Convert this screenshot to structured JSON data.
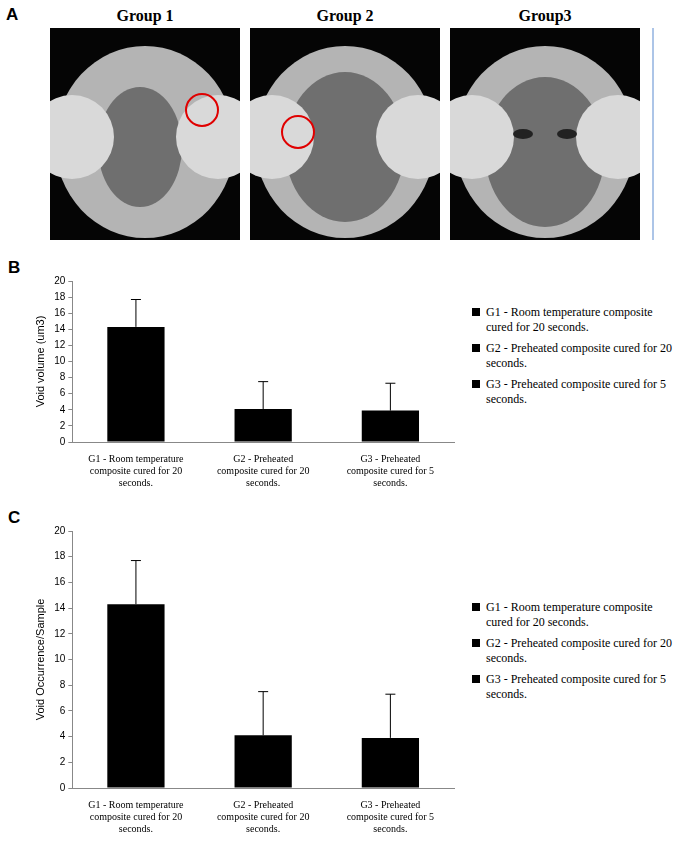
{
  "figure": {
    "panel_a": {
      "letter": "A",
      "titles": [
        "Group 1",
        "Group 2",
        "Group3"
      ]
    }
  },
  "chart_data": [
    {
      "panel_label": "B",
      "type": "bar",
      "y_label": "Void volume (um3)",
      "categories": [
        "G1 - Room temperature composite cured for 20 seconds.",
        "G2 - Preheated composite cured for 20 seconds.",
        "G3 - Preheated composite cured for 5 seconds."
      ],
      "values": [
        14.3,
        4.1,
        3.9
      ],
      "errors": [
        3.4,
        3.4,
        3.4
      ],
      "color": "#000000",
      "ylim": [
        0,
        20
      ],
      "yticks": [
        0,
        2,
        4,
        6,
        8,
        10,
        12,
        14,
        16,
        18,
        20
      ],
      "grid": false,
      "legend": "right"
    },
    {
      "panel_label": "C",
      "type": "bar",
      "y_label": "Void Occurrence/Sample",
      "categories": [
        "G1 - Room temperature composite cured for 20 seconds.",
        "G2 - Preheated composite cured for 20 seconds.",
        "G3 - Preheated composite cured for 5 seconds."
      ],
      "values": [
        14.3,
        4.1,
        3.9
      ],
      "errors": [
        3.4,
        3.4,
        3.4
      ],
      "color": "#000000",
      "ylim": [
        0,
        20
      ],
      "yticks": [
        0,
        2,
        4,
        6,
        8,
        10,
        12,
        14,
        16,
        18,
        20
      ],
      "grid": false,
      "legend": "right"
    }
  ]
}
